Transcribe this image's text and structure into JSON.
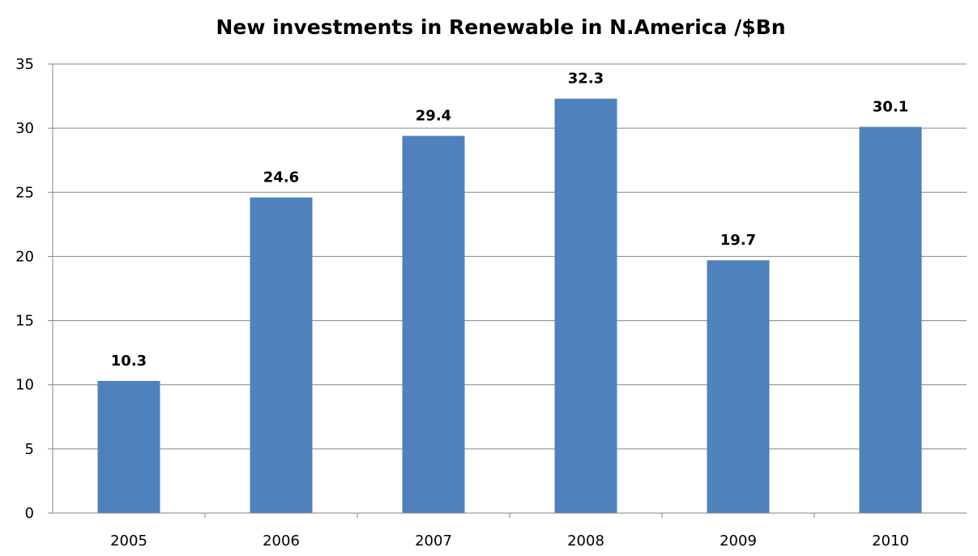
{
  "chart_data": {
    "type": "bar",
    "title": "New investments in Renewable in N.America /$Bn",
    "xlabel": "",
    "ylabel": "",
    "categories": [
      "2005",
      "2006",
      "2007",
      "2008",
      "2009",
      "2010"
    ],
    "values": [
      10.3,
      24.6,
      29.4,
      32.3,
      19.7,
      30.1
    ],
    "data_labels": [
      "10.3",
      "24.6",
      "29.4",
      "32.3",
      "19.7",
      "30.1"
    ],
    "ylim": [
      0,
      35
    ],
    "y_ticks": [
      0,
      5,
      10,
      15,
      20,
      25,
      30,
      35
    ],
    "y_tick_labels": [
      "0",
      "5",
      "10",
      "15",
      "20",
      "25",
      "30",
      "35"
    ],
    "grid": true,
    "legend": "none",
    "colors": {
      "bar": "#4F81BD",
      "grid": "#868686",
      "axis": "#868686",
      "text": "#000000"
    }
  }
}
